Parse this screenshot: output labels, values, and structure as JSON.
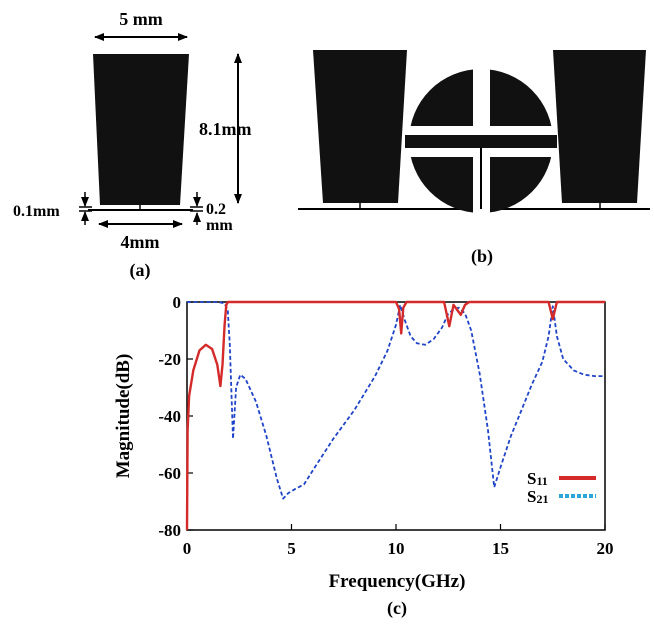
{
  "panel_a": {
    "caption": "(a)",
    "dim_top_width": "5 mm",
    "dim_height": "8.1mm",
    "dim_bottom_width": "4mm",
    "dim_gap_left": "0.1mm",
    "dim_gap_right_line1": "0.2",
    "dim_gap_right_line2": "mm"
  },
  "panel_b": {
    "caption": "(b)"
  },
  "panel_c": {
    "caption": "(c)"
  },
  "colors": {
    "s11": "#d42a2a",
    "s21": "#1f44c8",
    "legend_s21": "#2aa6d8",
    "shape": "#111111"
  },
  "chart_data": {
    "type": "line",
    "xlabel": "Frequency(GHz)",
    "ylabel": "Magnitude(dB)",
    "xlim": [
      0,
      20
    ],
    "ylim": [
      -80,
      0
    ],
    "xticks": [
      0,
      5,
      10,
      15,
      20
    ],
    "yticks": [
      0,
      -20,
      -40,
      -60,
      -80
    ],
    "grid": false,
    "legend_position": "lower-right",
    "series": [
      {
        "name": "S11",
        "style": "solid",
        "points": [
          [
            0,
            -80
          ],
          [
            0.03,
            -45
          ],
          [
            0.1,
            -33
          ],
          [
            0.3,
            -24
          ],
          [
            0.6,
            -17
          ],
          [
            0.9,
            -15
          ],
          [
            1.2,
            -16.5
          ],
          [
            1.45,
            -22
          ],
          [
            1.6,
            -29.5
          ],
          [
            1.7,
            -22
          ],
          [
            1.8,
            -8
          ],
          [
            1.88,
            -1
          ],
          [
            1.95,
            0
          ],
          [
            10.0,
            0
          ],
          [
            10.15,
            -2.5
          ],
          [
            10.25,
            -11
          ],
          [
            10.35,
            -2
          ],
          [
            10.5,
            0
          ],
          [
            12.3,
            0
          ],
          [
            12.55,
            -8.5
          ],
          [
            12.75,
            -1
          ],
          [
            12.9,
            -2.5
          ],
          [
            13.1,
            -4.5
          ],
          [
            13.3,
            -1
          ],
          [
            13.5,
            0
          ],
          [
            17.3,
            0
          ],
          [
            17.5,
            -6
          ],
          [
            17.7,
            0
          ],
          [
            20,
            0
          ]
        ]
      },
      {
        "name": "S21",
        "style": "dashed",
        "points": [
          [
            0,
            0
          ],
          [
            1.5,
            0
          ],
          [
            1.8,
            -0.5
          ],
          [
            1.95,
            -3
          ],
          [
            2.05,
            -15
          ],
          [
            2.2,
            -48
          ],
          [
            2.35,
            -30
          ],
          [
            2.55,
            -25.5
          ],
          [
            2.8,
            -27
          ],
          [
            3.3,
            -35
          ],
          [
            3.8,
            -47
          ],
          [
            4.3,
            -62
          ],
          [
            4.6,
            -69
          ],
          [
            4.85,
            -67
          ],
          [
            5.2,
            -65.5
          ],
          [
            5.6,
            -64
          ],
          [
            6.2,
            -57
          ],
          [
            7.0,
            -48
          ],
          [
            8.0,
            -38
          ],
          [
            9.0,
            -26
          ],
          [
            9.6,
            -17
          ],
          [
            10.0,
            -8
          ],
          [
            10.2,
            -1
          ],
          [
            10.4,
            -6
          ],
          [
            10.7,
            -12
          ],
          [
            11.0,
            -14.5
          ],
          [
            11.4,
            -15
          ],
          [
            11.8,
            -13
          ],
          [
            12.2,
            -9
          ],
          [
            12.5,
            -4
          ],
          [
            12.8,
            -2.5
          ],
          [
            13.0,
            -2
          ],
          [
            13.3,
            -4
          ],
          [
            13.6,
            -10
          ],
          [
            14.0,
            -25
          ],
          [
            14.4,
            -45
          ],
          [
            14.7,
            -65
          ],
          [
            15.0,
            -58
          ],
          [
            15.5,
            -47
          ],
          [
            16.0,
            -38
          ],
          [
            16.5,
            -29
          ],
          [
            17.0,
            -21
          ],
          [
            17.3,
            -12
          ],
          [
            17.5,
            -1.5
          ],
          [
            17.7,
            -12
          ],
          [
            18.0,
            -20
          ],
          [
            18.5,
            -24
          ],
          [
            19.0,
            -25.5
          ],
          [
            19.5,
            -26
          ],
          [
            20,
            -26
          ]
        ]
      }
    ],
    "legend": [
      {
        "label_main": "S",
        "label_sub": "11"
      },
      {
        "label_main": "S",
        "label_sub": "21"
      }
    ]
  }
}
